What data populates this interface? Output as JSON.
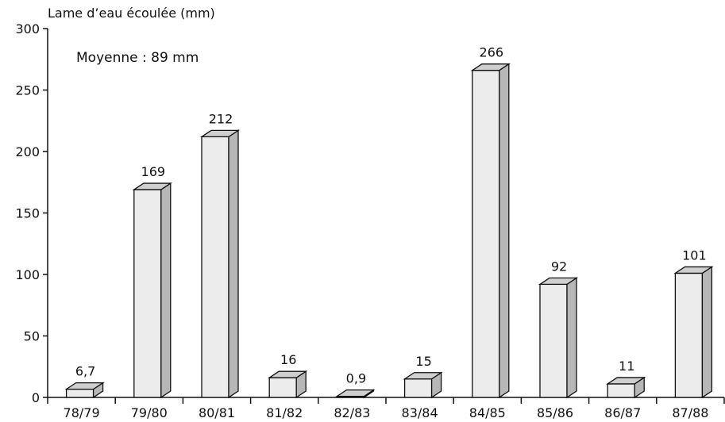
{
  "chart_data": {
    "type": "bar",
    "ylabel": "Lame d’eau écoulée (mm)",
    "note": "Moyenne : 89 mm",
    "categories": [
      "78/79",
      "79/80",
      "80/81",
      "81/82",
      "82/83",
      "83/84",
      "84/85",
      "85/86",
      "86/87",
      "87/88"
    ],
    "values": [
      6.7,
      169,
      212,
      16,
      0.9,
      15,
      266,
      92,
      11,
      101
    ],
    "value_labels": [
      "6,7",
      "169",
      "212",
      "16",
      "0,9",
      "15",
      "266",
      "92",
      "11",
      "101"
    ],
    "ylim": [
      0,
      300
    ],
    "yticks": [
      0,
      50,
      100,
      150,
      200,
      250,
      300
    ],
    "grid": false,
    "style": "3d-bar",
    "colors": {
      "bar_front": "#ececec",
      "bar_top": "#cfcfcf",
      "bar_side": "#b7b7b7",
      "ink": "#111111"
    }
  }
}
